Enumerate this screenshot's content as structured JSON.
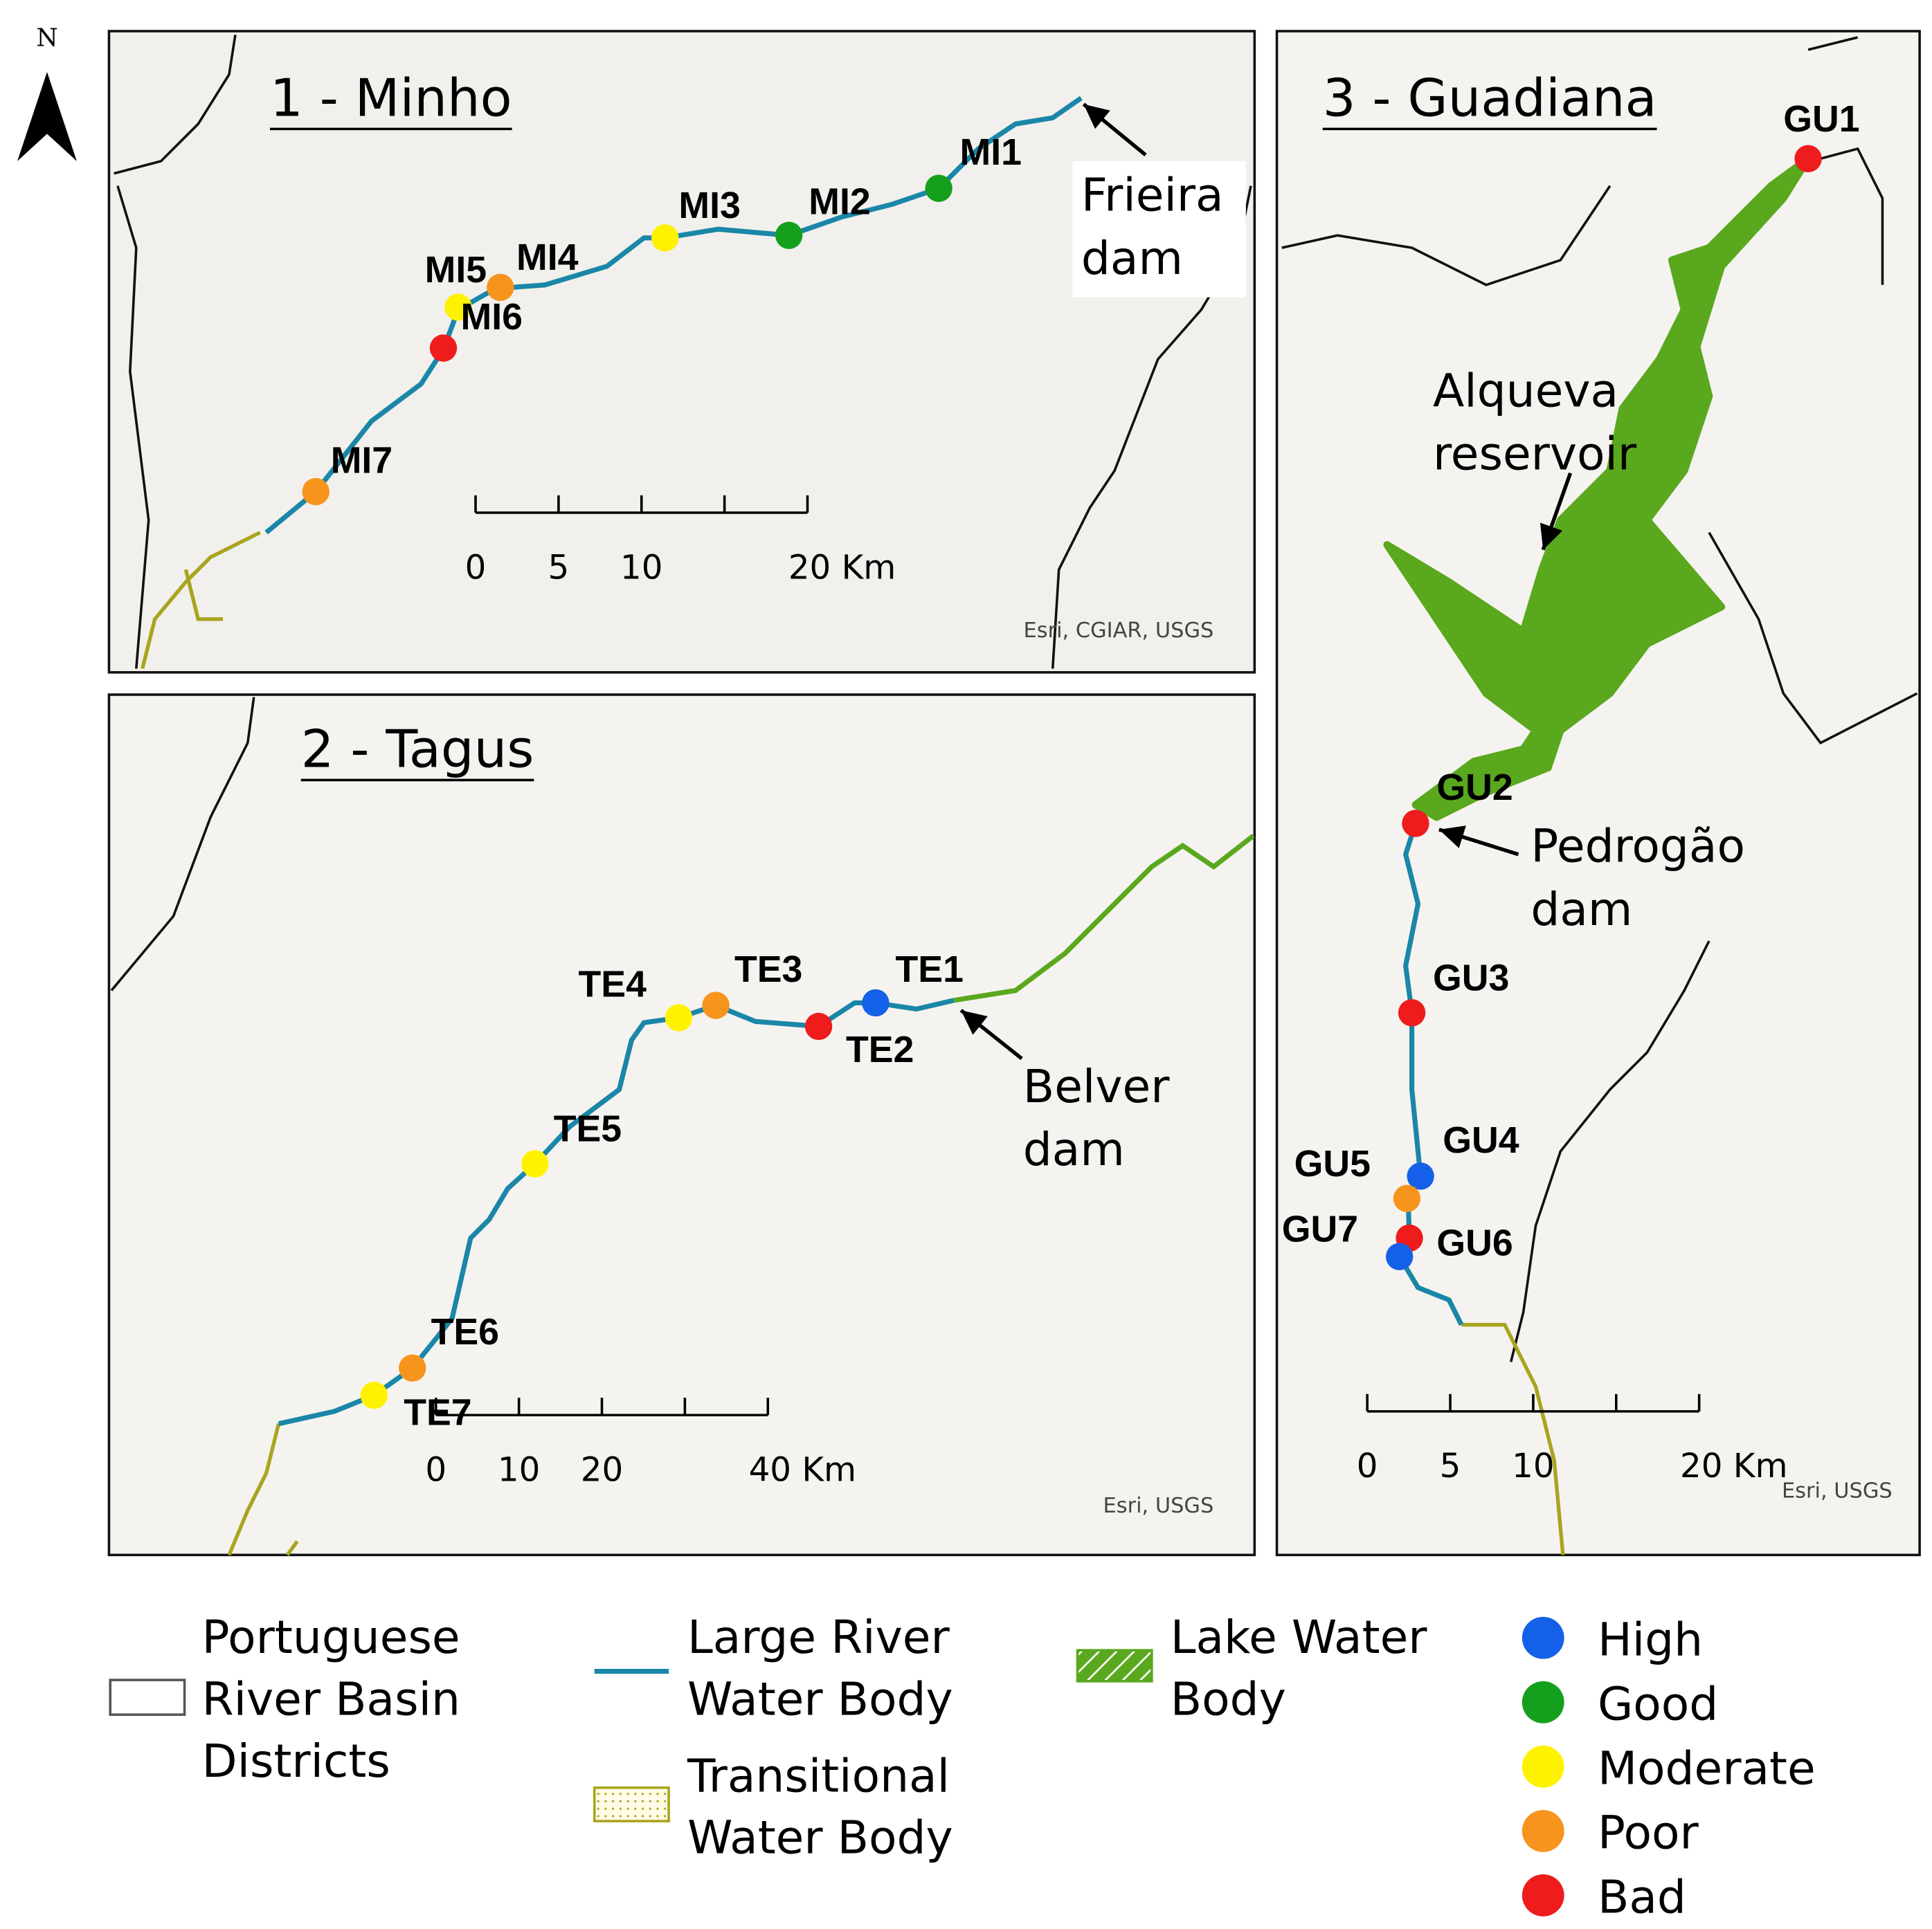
{
  "north_arrow": "N",
  "panels": [
    {
      "title": "1 - Minho",
      "sites": [
        {
          "label": "MI1",
          "status": "Good"
        },
        {
          "label": "MI2",
          "status": "Good"
        },
        {
          "label": "MI3",
          "status": "Moderate"
        },
        {
          "label": "MI4",
          "status": "Poor"
        },
        {
          "label": "MI5",
          "status": "Moderate"
        },
        {
          "label": "MI6",
          "status": "Bad"
        },
        {
          "label": "MI7",
          "status": "Poor"
        }
      ],
      "annotations": [
        [
          "Frieira",
          "dam"
        ]
      ],
      "scale_ticks": [
        "0",
        "5",
        "10",
        "20 Km"
      ],
      "attribution": "Esri, CGIAR, USGS"
    },
    {
      "title": "2 - Tagus",
      "sites": [
        {
          "label": "TE1",
          "status": "High"
        },
        {
          "label": "TE2",
          "status": "Bad"
        },
        {
          "label": "TE3",
          "status": "Poor"
        },
        {
          "label": "TE4",
          "status": "Moderate"
        },
        {
          "label": "TE5",
          "status": "Moderate"
        },
        {
          "label": "TE6",
          "status": "Poor"
        },
        {
          "label": "TE7",
          "status": "Moderate"
        }
      ],
      "annotations": [
        [
          "Belver",
          "dam"
        ]
      ],
      "scale_ticks": [
        "0",
        "10",
        "20",
        "40 Km"
      ],
      "attribution": "Esri, USGS"
    },
    {
      "title": "3 - Guadiana",
      "sites": [
        {
          "label": "GU1",
          "status": "Bad"
        },
        {
          "label": "GU2",
          "status": "Bad"
        },
        {
          "label": "GU3",
          "status": "Bad"
        },
        {
          "label": "GU4",
          "status": "High"
        },
        {
          "label": "GU5",
          "status": "Poor"
        },
        {
          "label": "GU6",
          "status": "Bad"
        },
        {
          "label": "GU7",
          "status": "High"
        }
      ],
      "annotations": [
        [
          "Alqueva",
          "reservoir"
        ],
        [
          "Pedrogão",
          "dam"
        ]
      ],
      "scale_ticks": [
        "0",
        "5",
        "10",
        "20 Km"
      ],
      "attribution": "Esri, USGS"
    }
  ],
  "legend": {
    "layers": [
      [
        "Portuguese",
        "River Basin",
        "Districts"
      ],
      [
        "Large River",
        "Water Body"
      ],
      [
        "Transitional",
        "Water Body"
      ],
      [
        "Lake Water",
        "Body"
      ]
    ],
    "status_classes": [
      {
        "label": "High",
        "color": "#1560e8"
      },
      {
        "label": "Good",
        "color": "#14a01c"
      },
      {
        "label": "Moderate",
        "color": "#fff200"
      },
      {
        "label": "Poor",
        "color": "#f7941d"
      },
      {
        "label": "Bad",
        "color": "#ee1c1c"
      }
    ]
  }
}
